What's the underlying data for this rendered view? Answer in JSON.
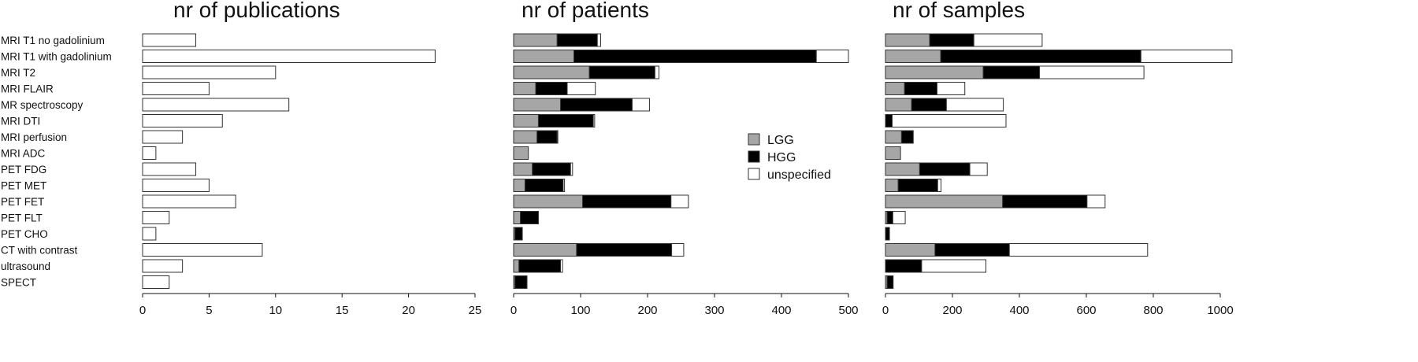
{
  "chart_data": [
    {
      "type": "bar",
      "orientation": "horizontal",
      "title": "nr of publications",
      "categories": [
        "MRI T1 no gadolinium",
        "MRI T1 with gadolinium",
        "MRI T2",
        "MRI FLAIR",
        "MR  spectroscopy",
        "MRI DTI",
        "MRI perfusion",
        "MRI ADC",
        "PET FDG",
        "PET MET",
        "PET FET",
        "PET FLT",
        "PET CHO",
        "CT with contrast",
        "ultrasound",
        "SPECT"
      ],
      "values": [
        4,
        22,
        10,
        5,
        11,
        6,
        3,
        1,
        4,
        5,
        7,
        2,
        1,
        9,
        3,
        2
      ],
      "xlim": [
        0,
        25
      ],
      "xticks": [
        0,
        5,
        10,
        15,
        20,
        25
      ]
    },
    {
      "type": "bar",
      "orientation": "horizontal",
      "stacked": true,
      "title": "nr of patients",
      "categories": [
        "MRI T1 no gadolinium",
        "MRI T1 with gadolinium",
        "MRI T2",
        "MRI FLAIR",
        "MR  spectroscopy",
        "MRI DTI",
        "MRI perfusion",
        "MRI ADC",
        "PET FDG",
        "PET MET",
        "PET FET",
        "PET FLT",
        "PET CHO",
        "CT with contrast",
        "ultrasound",
        "SPECT"
      ],
      "series": [
        {
          "name": "LGG",
          "values": [
            65,
            90,
            113,
            33,
            70,
            37,
            35,
            22,
            28,
            17,
            103,
            10,
            2,
            94,
            8,
            2
          ]
        },
        {
          "name": "HGG",
          "values": [
            60,
            362,
            98,
            47,
            107,
            82,
            30,
            0,
            57,
            57,
            132,
            27,
            11,
            142,
            62,
            18
          ]
        },
        {
          "name": "unspecified",
          "values": [
            5,
            48,
            6,
            42,
            26,
            2,
            1,
            0,
            3,
            2,
            26,
            0,
            0,
            18,
            3,
            0
          ]
        }
      ],
      "xlim": [
        0,
        500
      ],
      "xticks": [
        0,
        100,
        200,
        300,
        400,
        500
      ]
    },
    {
      "type": "bar",
      "orientation": "horizontal",
      "stacked": true,
      "title": "nr of samples",
      "categories": [
        "MRI T1 no gadolinium",
        "MRI T1 with gadolinium",
        "MRI T2",
        "MRI FLAIR",
        "MR  spectroscopy",
        "MRI DTI",
        "MRI perfusion",
        "MRI ADC",
        "PET FDG",
        "PET MET",
        "PET FET",
        "PET FLT",
        "PET CHO",
        "CT with contrast",
        "ultrasound",
        "SPECT"
      ],
      "series": [
        {
          "name": "LGG",
          "values": [
            132,
            165,
            292,
            57,
            78,
            0,
            48,
            45,
            102,
            38,
            350,
            5,
            0,
            148,
            0,
            5
          ]
        },
        {
          "name": "HGG",
          "values": [
            132,
            598,
            168,
            97,
            104,
            20,
            35,
            0,
            150,
            118,
            252,
            17,
            12,
            222,
            108,
            18
          ]
        },
        {
          "name": "unspecified",
          "values": [
            204,
            272,
            312,
            83,
            170,
            340,
            0,
            0,
            52,
            10,
            54,
            37,
            0,
            413,
            192,
            0
          ]
        }
      ],
      "xlim": [
        0,
        1000
      ],
      "xticks": [
        0,
        200,
        400,
        600,
        800,
        1000
      ]
    }
  ],
  "legend": {
    "position": "center",
    "items": [
      {
        "label": "LGG",
        "color": "#a6a6a6"
      },
      {
        "label": "HGG",
        "color": "#000000"
      },
      {
        "label": "unspecified",
        "color": "#ffffff"
      }
    ]
  },
  "colors": {
    "LGG": "#a6a6a6",
    "HGG": "#000000",
    "unspecified": "#ffffff",
    "outline": "#333333"
  }
}
